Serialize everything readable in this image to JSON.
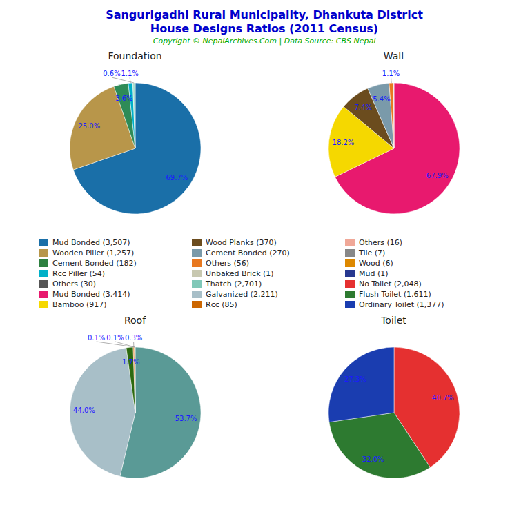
{
  "title": "Sangurigadhi Rural Municipality, Dhankuta District",
  "subtitle": "House Designs Ratios (2011 Census)",
  "title_color": "#0000cc",
  "note": "Copyright © NepalArchives.Com | Data Source: CBS Nepal",
  "note_color": "#00aa00",
  "label_color": "#1a1aff",
  "legend_items": [
    {
      "label": "Mud Bonded (3,507)",
      "color": "#1a6fa8"
    },
    {
      "label": "Wooden Piller (1,257)",
      "color": "#b8964a"
    },
    {
      "label": "Cement Bonded (182)",
      "color": "#2d8040"
    },
    {
      "label": "Rcc Piller (54)",
      "color": "#00b0c8"
    },
    {
      "label": "Others (30)",
      "color": "#555555"
    },
    {
      "label": "Mud Bonded (3,414)",
      "color": "#e8196e"
    },
    {
      "label": "Bamboo (917)",
      "color": "#f5d800"
    },
    {
      "label": "Wood Planks (370)",
      "color": "#6b4c1e"
    },
    {
      "label": "Cement Bonded (270)",
      "color": "#7a9aaa"
    },
    {
      "label": "Others (56)",
      "color": "#e87820"
    },
    {
      "label": "Unbaked Brick (1)",
      "color": "#c8c8b0"
    },
    {
      "label": "Thatch (2,701)",
      "color": "#80c8b8"
    },
    {
      "label": "Galvanized (2,211)",
      "color": "#a8bfc8"
    },
    {
      "label": "Rcc (85)",
      "color": "#cc6600"
    },
    {
      "label": "Others (16)",
      "color": "#f0a898"
    },
    {
      "label": "Tile (7)",
      "color": "#888888"
    },
    {
      "label": "Wood (6)",
      "color": "#dd8800"
    },
    {
      "label": "Mud (1)",
      "color": "#283890"
    },
    {
      "label": "No Toilet (2,048)",
      "color": "#e53030"
    },
    {
      "label": "Flush Toilet (1,611)",
      "color": "#2d7a30"
    },
    {
      "label": "Ordinary Toilet (1,377)",
      "color": "#1a3db0"
    }
  ],
  "chart_data": [
    {
      "type": "pie",
      "title": "Foundation",
      "values": [
        69.7,
        25.0,
        3.6,
        1.1,
        0.6
      ],
      "value_labels": [
        "69.7%",
        "25.0%",
        "3.6%",
        "1.1%",
        "0.6%"
      ],
      "colors": [
        "#1a6fa8",
        "#b8964a",
        "#2e8b57",
        "#00b0c8",
        "#aaddcc"
      ],
      "data_labels": true
    },
    {
      "type": "pie",
      "title": "Wall",
      "values": [
        67.9,
        18.2,
        7.4,
        5.4,
        1.1,
        0.1,
        0.0
      ],
      "value_labels": [
        "67.9%",
        "18.2%",
        "7.4%",
        "5.4%",
        "1.1%",
        null,
        null
      ],
      "colors": [
        "#e8196e",
        "#f5d800",
        "#6b4c1e",
        "#7a9aaa",
        "#e87820",
        "#cccccc",
        "#444444"
      ],
      "data_labels": true
    },
    {
      "type": "pie",
      "title": "Roof",
      "values": [
        53.7,
        44.0,
        1.7,
        0.3,
        0.1,
        0.1,
        0.0
      ],
      "value_labels": [
        "53.7%",
        "44.0%",
        "1.7%",
        "0.3%",
        "0.1%",
        "0.1%",
        null
      ],
      "colors": [
        "#5a9a96",
        "#a8bfc8",
        "#2d6a10",
        "#e87820",
        "#ccddaa",
        "#bbccdd",
        "#ddeecc"
      ],
      "data_labels": true
    },
    {
      "type": "pie",
      "title": "Toilet",
      "values": [
        40.7,
        32.0,
        27.3
      ],
      "value_labels": [
        "40.7%",
        "32.0%",
        "27.3%"
      ],
      "colors": [
        "#e53030",
        "#2d7a30",
        "#1a3db0"
      ],
      "data_labels": true
    }
  ]
}
